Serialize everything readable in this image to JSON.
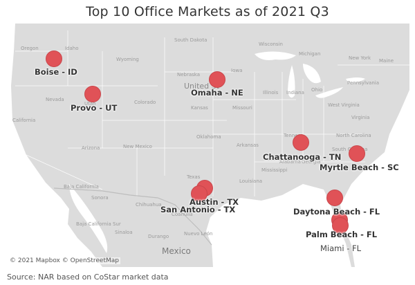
{
  "title": "Top 10 Office Markets as of 2021 Q3",
  "source": "Source: NAR based on CoStar market data",
  "attribution": "© 2021 Mapbox © OpenStreetMap",
  "colors": {
    "marker": "#e05257",
    "land": "#dcdcdc",
    "water": "#ffffff"
  },
  "markets": [
    {
      "label": "Boise - ID"
    },
    {
      "label": "Provo - UT"
    },
    {
      "label": "Omaha - NE"
    },
    {
      "label": "Chattanooga - TN"
    },
    {
      "label": "Myrtle Beach - SC"
    },
    {
      "label": "Austin - TX"
    },
    {
      "label": "San Antonio - TX"
    },
    {
      "label": "Daytona Beach - FL"
    },
    {
      "label": "Palm Beach - FL"
    },
    {
      "label": "Miami - FL"
    }
  ],
  "geo_labels": {
    "oregon": "Oregon",
    "idaho": "Idaho",
    "wyoming": "Wyoming",
    "south_dakota": "South Dakota",
    "nebraska": "Nebraska",
    "iowa": "Iowa",
    "wisconsin": "Wisconsin",
    "michigan": "Michigan",
    "new_york": "New York",
    "nevada": "Nevada",
    "utah": "Utah",
    "colorado": "Colorado",
    "kansas": "Kansas",
    "missouri": "Missouri",
    "illinois": "Illinois",
    "indiana": "Indiana",
    "ohio": "Ohio",
    "pennsylvania": "Pennsylvania",
    "west_virginia": "West Virginia",
    "virginia": "Virginia",
    "california": "California",
    "arizona": "Arizona",
    "new_mexico": "New Mexico",
    "oklahoma": "Oklahoma",
    "arkansas": "Arkansas",
    "tennessee": "Tenness",
    "north_carolina": "North Carolina",
    "south_carolina": "South Carolina",
    "mississippi": "Mississippi",
    "alabama": "Alabama",
    "georgia": "Georgia",
    "louisiana": "Louisiana",
    "texas": "Texas",
    "baja_california": "Baja California",
    "sonora": "Sonora",
    "chihuahua": "Chihuahua",
    "coahuila": "Coahuila",
    "baja_california_sur": "Baja California Sur",
    "sinaloa": "Sinaloa",
    "durango": "Durango",
    "nuevo_leon": "Nuevo León",
    "mexico": "Mexico",
    "united_states": "United St",
    "maine": "Maine"
  }
}
